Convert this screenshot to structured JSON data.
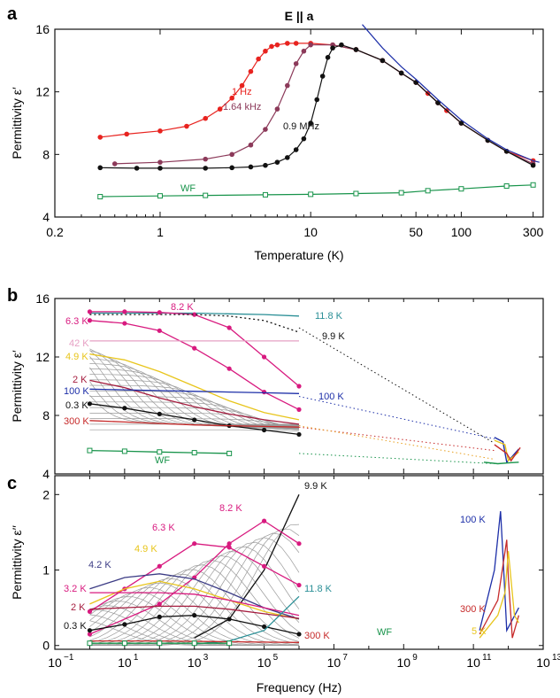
{
  "panels": {
    "a": "a",
    "b": "b",
    "c": "c"
  },
  "chart_data": [
    {
      "type": "scatter",
      "panel": "a",
      "title": "E || a",
      "xlabel": "Temperature (K)",
      "ylabel": "Permittivity ε′",
      "xscale": "log",
      "xlim": [
        0.2,
        350
      ],
      "ylim": [
        4,
        16
      ],
      "xticks": [
        0.2,
        1,
        10,
        50,
        100,
        300
      ],
      "xtick_labels": [
        "0.2",
        "1",
        "10",
        "50",
        "100",
        "300"
      ],
      "yticks": [
        4,
        8,
        12,
        16
      ],
      "series": [
        {
          "name": "1 Hz",
          "color": "#e8231f",
          "x": [
            0.4,
            0.6,
            1.0,
            1.5,
            2.0,
            2.5,
            3.0,
            3.5,
            4.0,
            4.5,
            5.0,
            5.5,
            6.0,
            7.0,
            8.0,
            10,
            14,
            20,
            30,
            40,
            50,
            60,
            70,
            80,
            100,
            150,
            200,
            300
          ],
          "y": [
            9.1,
            9.3,
            9.5,
            9.8,
            10.3,
            10.9,
            11.6,
            12.4,
            13.3,
            14.1,
            14.6,
            14.9,
            15.0,
            15.1,
            15.1,
            15.1,
            15.0,
            14.7,
            14.0,
            13.2,
            12.6,
            11.9,
            11.3,
            10.8,
            10.0,
            8.9,
            8.2,
            7.6
          ]
        },
        {
          "name": "1.64 kHz",
          "color": "#8c3a5a",
          "x": [
            0.5,
            1.0,
            2.0,
            3.0,
            4.0,
            5.0,
            6.0,
            7.0,
            8.0,
            9.0,
            10,
            14,
            20,
            30,
            40,
            50,
            70,
            100,
            150,
            200,
            300
          ],
          "y": [
            7.4,
            7.5,
            7.7,
            8.0,
            8.6,
            9.6,
            10.9,
            12.4,
            13.8,
            14.6,
            15.0,
            15.0,
            14.7,
            14.0,
            13.2,
            12.6,
            11.3,
            10.0,
            8.9,
            8.2,
            7.4
          ]
        },
        {
          "name": "0.9 MHz",
          "color": "#111111",
          "x": [
            0.4,
            0.7,
            1.0,
            2.0,
            3.0,
            4.0,
            5.0,
            6.0,
            7.0,
            8.0,
            9.0,
            10,
            11,
            12,
            13,
            14,
            16,
            20,
            30,
            40,
            50,
            70,
            100,
            150,
            200,
            300
          ],
          "y": [
            7.15,
            7.12,
            7.12,
            7.12,
            7.15,
            7.2,
            7.3,
            7.5,
            7.8,
            8.3,
            9.0,
            10.0,
            11.5,
            13.0,
            14.2,
            14.8,
            15.0,
            14.7,
            14.0,
            13.2,
            12.6,
            11.3,
            10.0,
            8.9,
            8.2,
            7.3
          ]
        },
        {
          "name": "WF",
          "color": "#17934a",
          "x": [
            0.4,
            1.0,
            2.0,
            5.0,
            10,
            20,
            40,
            60,
            100,
            200,
            300
          ],
          "y": [
            5.3,
            5.35,
            5.38,
            5.42,
            5.45,
            5.5,
            5.55,
            5.68,
            5.8,
            5.98,
            6.05
          ]
        },
        {
          "name": "",
          "color": "#1d2fa8",
          "x": [
            22,
            30,
            40,
            50,
            70,
            100,
            150,
            200,
            300,
            330
          ],
          "y": [
            16.3,
            14.8,
            13.6,
            12.8,
            11.5,
            10.2,
            9.0,
            8.3,
            7.6,
            7.5
          ]
        }
      ]
    },
    {
      "type": "line",
      "panel": "b",
      "xlabel": "",
      "ylabel": "Permittivity ε′",
      "xscale": "log",
      "xlim": [
        0.1,
        10000000000000.0
      ],
      "ylim": [
        4,
        16
      ],
      "yticks": [
        4,
        8,
        12,
        16
      ],
      "series": [
        {
          "name": "11.8 K",
          "color": "#2a8f96",
          "x": [
            1,
            10,
            100,
            1000,
            10000,
            100000,
            1000000
          ],
          "y": [
            15.0,
            15.0,
            15.0,
            15.0,
            14.95,
            14.9,
            14.8
          ]
        },
        {
          "name": "8.2 K",
          "color": "#d81a7f",
          "x": [
            1,
            10,
            100,
            1000,
            10000,
            100000,
            1000000
          ],
          "y": [
            15.1,
            15.1,
            15.05,
            14.9,
            14.0,
            12.0,
            10.0
          ]
        },
        {
          "name": "6.3 K",
          "color": "#d81a7f",
          "x": [
            1,
            10,
            100,
            1000,
            10000,
            100000,
            1000000
          ],
          "y": [
            14.5,
            14.3,
            13.8,
            12.6,
            11.2,
            9.6,
            8.4
          ]
        },
        {
          "name": "42 K",
          "color": "#e6a0c4",
          "x": [
            1,
            10,
            100,
            1000,
            10000,
            100000,
            1000000
          ],
          "y": [
            13.1,
            13.1,
            13.1,
            13.1,
            13.1,
            13.1,
            13.1
          ]
        },
        {
          "name": "4.9 K",
          "color": "#e8c51c",
          "x": [
            1,
            10,
            100,
            1000,
            10000,
            100000,
            1000000
          ],
          "y": [
            12.2,
            11.8,
            11.0,
            10.0,
            9.0,
            8.2,
            7.7
          ]
        },
        {
          "name": "2 K",
          "color": "#a51d3f",
          "x": [
            1,
            10,
            100,
            1000,
            10000,
            100000,
            1000000
          ],
          "y": [
            10.4,
            9.9,
            9.2,
            8.6,
            8.1,
            7.7,
            7.4
          ]
        },
        {
          "name": "100 K",
          "color": "#1d2fa8",
          "x": [
            1,
            10,
            100,
            1000,
            10000,
            100000,
            1000000
          ],
          "y": [
            9.8,
            9.75,
            9.7,
            9.65,
            9.6,
            9.55,
            9.5
          ]
        },
        {
          "name": "0.3 K",
          "color": "#111111",
          "x": [
            1,
            10,
            100,
            1000,
            10000,
            100000,
            1000000
          ],
          "y": [
            8.8,
            8.5,
            8.1,
            7.7,
            7.3,
            7.0,
            6.7
          ]
        },
        {
          "name": "300 K",
          "color": "#c62a2a",
          "x": [
            1,
            10,
            100,
            1000,
            10000,
            100000,
            1000000
          ],
          "y": [
            7.65,
            7.55,
            7.45,
            7.35,
            7.3,
            7.25,
            7.2
          ]
        },
        {
          "name": "9.9 K",
          "color": "#111111",
          "x": [
            1,
            10,
            100,
            1000,
            10000,
            100000,
            1000000
          ],
          "y": [
            14.9,
            14.9,
            14.9,
            14.9,
            14.8,
            14.5,
            13.7
          ]
        },
        {
          "name": "WF",
          "color": "#17934a",
          "x": [
            1,
            10,
            100,
            1000,
            10000
          ],
          "y": [
            5.6,
            5.55,
            5.5,
            5.45,
            5.4
          ]
        }
      ]
    },
    {
      "type": "line",
      "panel": "c",
      "xlabel": "Frequency (Hz)",
      "ylabel": "Permittivity ε′′",
      "xscale": "log",
      "xlim": [
        0.1,
        10000000000000.0
      ],
      "ylim": [
        -0.05,
        2.25
      ],
      "yticks": [
        0,
        1,
        2
      ],
      "xticks": [
        0.1,
        10,
        1000,
        100000,
        10000000,
        1000000000,
        100000000000,
        10000000000000
      ],
      "series": [
        {
          "name": "9.9 K",
          "color": "#111111",
          "x": [
            1000,
            10000,
            100000,
            1000000
          ],
          "y": [
            0.1,
            0.35,
            1.0,
            2.0
          ]
        },
        {
          "name": "8.2 K",
          "color": "#d81a7f",
          "x": [
            1,
            100,
            1000,
            10000,
            100000,
            1000000
          ],
          "y": [
            0.15,
            0.55,
            0.9,
            1.35,
            1.65,
            1.35
          ]
        },
        {
          "name": "6.3 K",
          "color": "#d81a7f",
          "x": [
            1,
            10,
            100,
            1000,
            10000,
            100000,
            1000000
          ],
          "y": [
            0.45,
            0.75,
            1.05,
            1.35,
            1.3,
            1.05,
            0.8
          ]
        },
        {
          "name": "4.9 K",
          "color": "#e8c51c",
          "x": [
            1,
            10,
            100,
            1000,
            10000,
            100000,
            1000000
          ],
          "y": [
            0.55,
            0.75,
            0.85,
            0.75,
            0.6,
            0.45,
            0.35
          ]
        },
        {
          "name": "4.2 K",
          "color": "#3c3c85",
          "x": [
            1,
            10,
            100,
            1000,
            10000,
            100000,
            1000000
          ],
          "y": [
            0.75,
            0.9,
            0.95,
            0.88,
            0.7,
            0.5,
            0.35
          ]
        },
        {
          "name": "3.2 K",
          "color": "#d81a7f",
          "x": [
            1,
            10,
            100,
            1000,
            10000,
            100000,
            1000000
          ],
          "y": [
            0.7,
            0.7,
            0.7,
            0.68,
            0.6,
            0.5,
            0.4
          ]
        },
        {
          "name": "2 K",
          "color": "#a51d3f",
          "x": [
            1,
            10,
            100,
            1000,
            10000,
            100000,
            1000000
          ],
          "y": [
            0.48,
            0.5,
            0.52,
            0.52,
            0.48,
            0.42,
            0.36
          ]
        },
        {
          "name": "0.3 K",
          "color": "#111111",
          "x": [
            1,
            10,
            100,
            1000,
            10000,
            100000,
            1000000
          ],
          "y": [
            0.2,
            0.28,
            0.38,
            0.4,
            0.35,
            0.25,
            0.15
          ]
        },
        {
          "name": "11.8 K",
          "color": "#2a8f96",
          "x": [
            1000,
            10000,
            100000,
            1000000
          ],
          "y": [
            0.02,
            0.06,
            0.2,
            0.65
          ]
        },
        {
          "name": "300 K",
          "color": "#c62a2a",
          "x": [
            1,
            100,
            10000,
            1000000
          ],
          "y": [
            0.06,
            0.06,
            0.05,
            0.04
          ]
        },
        {
          "name": "WF",
          "color": "#17934a",
          "x": [
            1,
            10,
            100,
            1000,
            10000
          ],
          "y": [
            0.03,
            0.03,
            0.03,
            0.03,
            0.03
          ]
        },
        {
          "name": "100 K",
          "color": "#1d2fa8",
          "x": [
            150000000000,
            400000000000,
            600000000000,
            700000000000,
            900000000000,
            2000000000000
          ],
          "y": [
            0.2,
            1.0,
            1.78,
            1.2,
            0.2,
            0.5
          ]
        },
        {
          "name": "300 K",
          "color": "#c62a2a",
          "x": [
            150000000000,
            500000000000,
            900000000000,
            1000000000000,
            1300000000000,
            2000000000000
          ],
          "y": [
            0.15,
            0.6,
            1.4,
            0.9,
            0.1,
            0.4
          ]
        },
        {
          "name": "5 K",
          "color": "#e8c51c",
          "x": [
            150000000000,
            500000000000,
            800000000000,
            1000000000000,
            1500000000000,
            2000000000000
          ],
          "y": [
            0.1,
            0.4,
            0.7,
            1.25,
            0.4,
            0.3
          ]
        }
      ]
    }
  ]
}
